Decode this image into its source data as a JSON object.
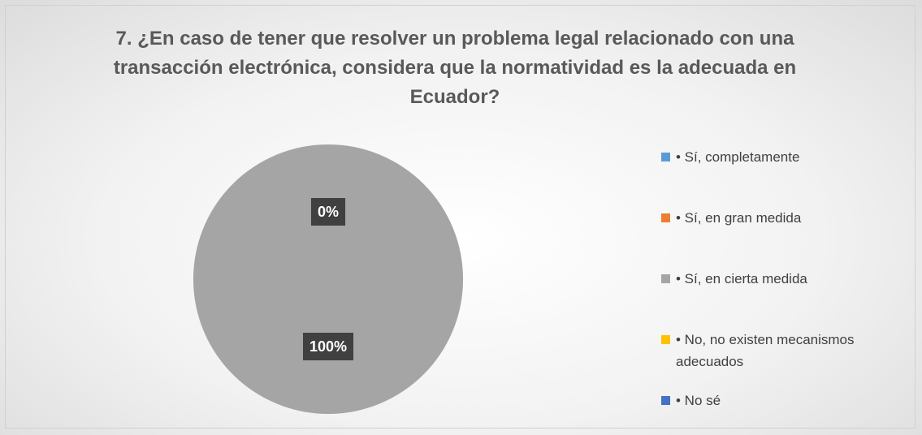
{
  "chart_data": {
    "type": "pie",
    "title": "7. ¿En caso de tener que resolver un problema legal relacionado con una transacción electrónica, considera que la normatividad es la adecuada en Ecuador?",
    "categories": [
      "• Sí, completamente",
      "• Sí, en gran medida",
      "• Sí, en cierta medida",
      "• No, no existen mecanismos adecuados",
      "• No sé"
    ],
    "values": [
      0,
      0,
      100,
      0,
      0
    ],
    "value_labels": [
      "0%",
      "0%",
      "100%",
      "0%",
      "0%"
    ],
    "colors": [
      "#5b9bd5",
      "#ed7d31",
      "#a5a5a5",
      "#ffc000",
      "#4472c4"
    ],
    "legend": "right"
  }
}
